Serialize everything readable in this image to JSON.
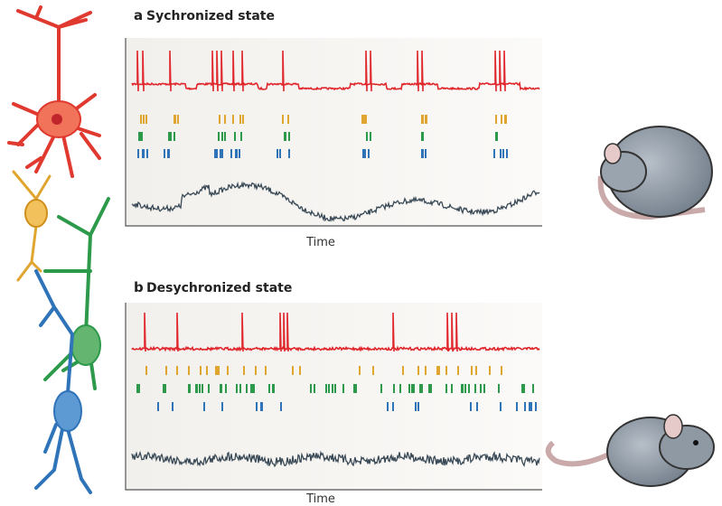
{
  "panels": [
    {
      "letter": "a",
      "title": "Sychronized state",
      "x_label": "Time"
    },
    {
      "letter": "b",
      "title": "Desychronized state",
      "x_label": "Time"
    }
  ]
}
